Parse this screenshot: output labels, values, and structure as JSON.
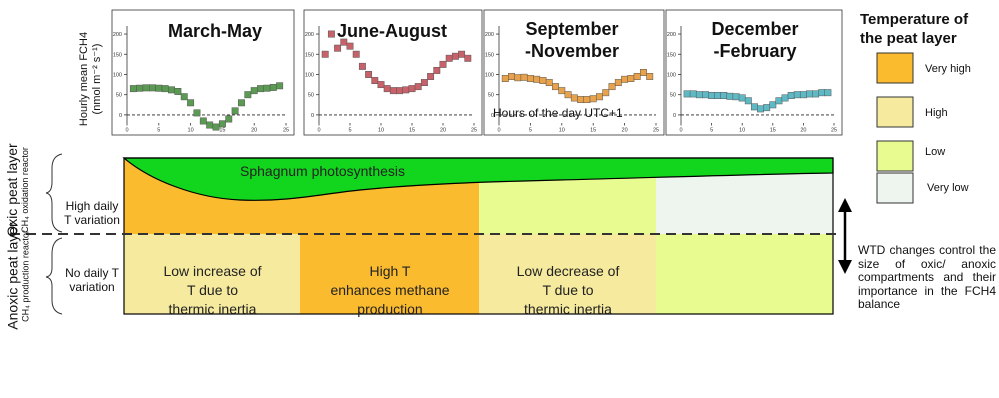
{
  "chart_data": [
    {
      "type": "scatter",
      "title": "March-May",
      "ylabel": "Hourly mean FCH4 (nmol m-2 s-1)",
      "xlim": [
        0,
        25
      ],
      "ylim": [
        -20,
        210
      ],
      "xticks": [
        0,
        5,
        10,
        15,
        20,
        25
      ],
      "yticks": [
        0,
        50,
        100,
        150,
        200
      ],
      "color": "#5a9a52",
      "x": [
        1,
        2,
        3,
        4,
        5,
        6,
        7,
        8,
        9,
        10,
        11,
        12,
        13,
        14,
        15,
        16,
        17,
        18,
        19,
        20,
        21,
        22,
        23,
        24
      ],
      "y": [
        65,
        66,
        67,
        67,
        66,
        65,
        62,
        58,
        45,
        30,
        5,
        -15,
        -25,
        -30,
        -22,
        -10,
        10,
        30,
        50,
        60,
        65,
        66,
        68,
        72
      ]
    },
    {
      "type": "scatter",
      "title": "June-August",
      "xlim": [
        0,
        25
      ],
      "ylim": [
        -20,
        210
      ],
      "xticks": [
        0,
        5,
        10,
        15,
        20,
        25
      ],
      "yticks": [
        0,
        50,
        100,
        150,
        200
      ],
      "color": "#c7626a",
      "x": [
        1,
        2,
        3,
        4,
        5,
        6,
        7,
        8,
        9,
        10,
        11,
        12,
        13,
        14,
        15,
        16,
        17,
        18,
        19,
        20,
        21,
        22,
        23,
        24
      ],
      "y": [
        150,
        200,
        165,
        180,
        170,
        150,
        120,
        100,
        85,
        75,
        65,
        60,
        60,
        62,
        65,
        70,
        80,
        95,
        110,
        125,
        140,
        145,
        150,
        140
      ]
    },
    {
      "type": "scatter",
      "title": "September-November",
      "xlabel": "Hours of the day UTC+1",
      "xlim": [
        0,
        25
      ],
      "ylim": [
        -20,
        210
      ],
      "xticks": [
        0,
        5,
        10,
        15,
        20,
        25
      ],
      "yticks": [
        0,
        50,
        100,
        150,
        200
      ],
      "color": "#e9a24c",
      "x": [
        1,
        2,
        3,
        4,
        5,
        6,
        7,
        8,
        9,
        10,
        11,
        12,
        13,
        14,
        15,
        16,
        17,
        18,
        19,
        20,
        21,
        22,
        23,
        24
      ],
      "y": [
        90,
        95,
        92,
        93,
        90,
        88,
        85,
        80,
        70,
        60,
        50,
        42,
        38,
        38,
        40,
        45,
        55,
        70,
        80,
        88,
        90,
        95,
        105,
        95
      ]
    },
    {
      "type": "scatter",
      "title": "December-February",
      "xlim": [
        0,
        25
      ],
      "ylim": [
        -20,
        210
      ],
      "xticks": [
        0,
        5,
        10,
        15,
        20,
        25
      ],
      "yticks": [
        0,
        50,
        100,
        150,
        200
      ],
      "color": "#5fb9c4",
      "x": [
        1,
        2,
        3,
        4,
        5,
        6,
        7,
        8,
        9,
        10,
        11,
        12,
        13,
        14,
        15,
        16,
        17,
        18,
        19,
        20,
        21,
        22,
        23,
        24
      ],
      "y": [
        52,
        52,
        50,
        50,
        48,
        48,
        48,
        46,
        45,
        42,
        35,
        20,
        15,
        18,
        25,
        35,
        42,
        48,
        50,
        50,
        52,
        52,
        55,
        55
      ]
    }
  ],
  "panel_titles": {
    "p1": "March-May",
    "p2": "June-August",
    "p3_line1": "September",
    "p3_line2": "-November",
    "p4_line1": "December",
    "p4_line2": "-February"
  },
  "ylabel_line1": "Hourly mean FCH4",
  "ylabel_line2": "(nmol m⁻² s⁻¹)",
  "xlabel": "Hours of the day UTC+1",
  "legend": {
    "title_line1": "Temperature of",
    "title_line2": "the peat layer",
    "items": [
      {
        "label": "Very high",
        "color": "#fbbb2e"
      },
      {
        "label": "High",
        "color": "#f6ea9e"
      },
      {
        "label": "Low",
        "color": "#e7fb90"
      },
      {
        "label": "Very low",
        "color": "#eef5ef"
      }
    ]
  },
  "layers": {
    "oxic_title": "Oxic peat layer",
    "oxic_sub": "CH₄ oxidation reactor",
    "anoxic_title": "Anoxic peat layer",
    "anoxic_sub": "CH₄ production reactor",
    "oxic_variation_line1": "High daily",
    "oxic_variation_line2": "T variation",
    "anoxic_variation_line1": "No daily T",
    "anoxic_variation_line2": "variation"
  },
  "diagram": {
    "photosynthesis": "Sphagnum photosynthesis",
    "zone1": [
      "Low increase of",
      "T due to",
      "thermic inertia"
    ],
    "zone2": [
      "High T",
      "enhances methane",
      "production"
    ],
    "zone3": [
      "Low decrease of",
      "T due to",
      "thermic inertia"
    ],
    "wtd_text": "WTD changes control the size of oxic/ anoxic compartments and their importance in the FCH4 balance",
    "colors": {
      "green": "#12d51e",
      "zone_orange": "#fbbb2e",
      "zone_yellow": "#f6ea9e",
      "zone_lime": "#e7fb90",
      "zone_verylow": "#eef5ef"
    }
  }
}
